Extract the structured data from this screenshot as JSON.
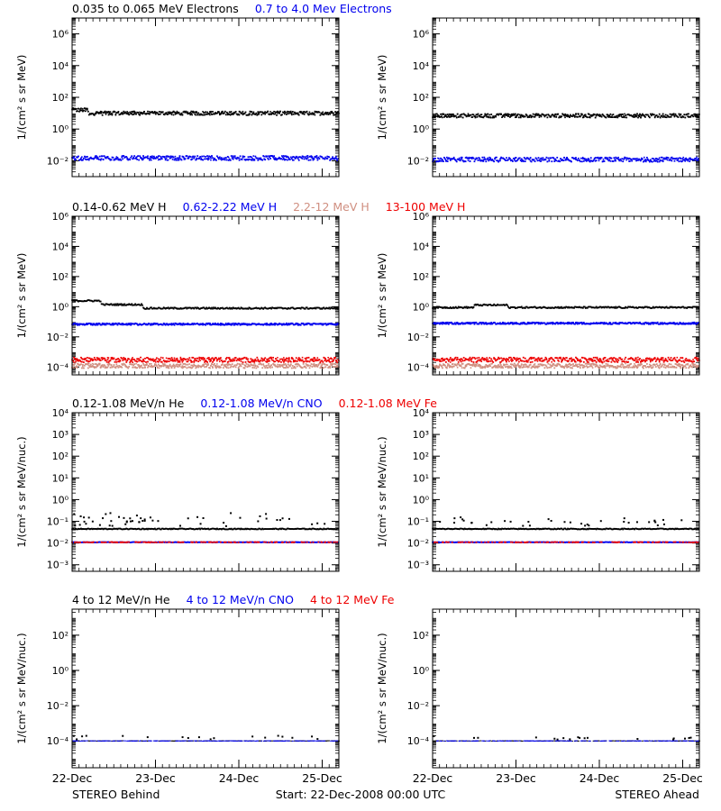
{
  "colors": {
    "black": "#000000",
    "blue": "#0000ee",
    "tan": "#d08f80",
    "red": "#ee0000"
  },
  "footer": {
    "left": "STEREO Behind",
    "center": "Start: 22-Dec-2008 00:00 UTC",
    "right": "STEREO Ahead"
  },
  "chart_data": [
    {
      "type": "scatter",
      "y_scale": "log",
      "ylabel": "1/(cm² s sr MeV)",
      "ylim": [
        0.001,
        10000000
      ],
      "y_ticks": [
        0.01,
        1,
        100,
        10000,
        1000000
      ],
      "y_tick_labels": [
        "10⁻²",
        "10⁰",
        "10²",
        "10⁴",
        "10⁶"
      ],
      "x_tick_labels": [
        "22-Dec",
        "23-Dec",
        "24-Dec",
        "25-Dec"
      ],
      "xlim_days": [
        0,
        3.2
      ],
      "legend": [
        {
          "label": "0.035 to 0.065 MeV Electrons",
          "color": "black"
        },
        {
          "label": "0.7 to 4.0 Mev Electrons",
          "color": "blue"
        }
      ],
      "panels": [
        {
          "name": "STEREO Behind",
          "series": [
            {
              "color": "black",
              "level": 10,
              "spread": 0.12,
              "early": [
                [
                  0,
                  0.2,
                  16
                ]
              ]
            },
            {
              "color": "blue",
              "level": 0.015,
              "spread": 0.14,
              "early": []
            }
          ]
        },
        {
          "name": "STEREO Ahead",
          "series": [
            {
              "color": "black",
              "level": 7,
              "spread": 0.12,
              "early": []
            },
            {
              "color": "blue",
              "level": 0.012,
              "spread": 0.14,
              "early": []
            }
          ]
        }
      ]
    },
    {
      "type": "scatter",
      "y_scale": "log",
      "ylabel": "1/(cm² s sr MeV)",
      "ylim": [
        3e-05,
        1000000
      ],
      "y_ticks": [
        0.0001,
        0.01,
        1,
        100,
        10000,
        1000000
      ],
      "y_tick_labels": [
        "10⁻⁴",
        "10⁻²",
        "10⁰",
        "10²",
        "10⁴",
        "10⁶"
      ],
      "x_tick_labels": [
        "22-Dec",
        "23-Dec",
        "24-Dec",
        "25-Dec"
      ],
      "xlim_days": [
        0,
        3.2
      ],
      "legend": [
        {
          "label": "0.14-0.62 MeV H",
          "color": "black"
        },
        {
          "label": "0.62-2.22 MeV H",
          "color": "blue"
        },
        {
          "label": "2.2-12 MeV H",
          "color": "tan"
        },
        {
          "label": "13-100 MeV H",
          "color": "red"
        }
      ],
      "panels": [
        {
          "name": "STEREO Behind",
          "series": [
            {
              "color": "black",
              "level": 0.8,
              "spread": 0.05,
              "early": [
                [
                  0,
                  0.35,
                  2.5
                ],
                [
                  0.35,
                  0.85,
                  1.4
                ]
              ]
            },
            {
              "color": "blue",
              "level": 0.07,
              "spread": 0.06,
              "early": []
            },
            {
              "color": "tan",
              "level": 0.00012,
              "spread": 0.15,
              "early": []
            },
            {
              "color": "red",
              "level": 0.0003,
              "spread": 0.16,
              "early": []
            }
          ]
        },
        {
          "name": "STEREO Ahead",
          "series": [
            {
              "color": "black",
              "level": 0.9,
              "spread": 0.05,
              "early": [
                [
                  0.5,
                  0.9,
                  1.3
                ]
              ]
            },
            {
              "color": "blue",
              "level": 0.08,
              "spread": 0.06,
              "early": []
            },
            {
              "color": "tan",
              "level": 0.00012,
              "spread": 0.15,
              "early": []
            },
            {
              "color": "red",
              "level": 0.0003,
              "spread": 0.16,
              "early": []
            }
          ]
        }
      ]
    },
    {
      "type": "scatter",
      "y_scale": "log",
      "ylabel": "1/(cm² s sr MeV/nuc.)",
      "ylim": [
        0.0005,
        10000
      ],
      "y_ticks": [
        0.001,
        0.01,
        0.1,
        1,
        10,
        100,
        1000,
        10000
      ],
      "y_tick_labels": [
        "10⁻³",
        "10⁻²",
        "10⁻¹",
        "10⁰",
        "10¹",
        "10²",
        "10³",
        "10⁴"
      ],
      "x_tick_labels": [
        "22-Dec",
        "23-Dec",
        "24-Dec",
        "25-Dec"
      ],
      "xlim_days": [
        0,
        3.2
      ],
      "legend": [
        {
          "label": "0.12-1.08 MeV/n He",
          "color": "black"
        },
        {
          "label": "0.12-1.08 MeV/n CNO",
          "color": "blue"
        },
        {
          "label": "0.12-1.08 MeV Fe",
          "color": "red"
        }
      ],
      "panels": [
        {
          "name": "STEREO Behind",
          "series": [
            {
              "color": "black",
              "level": 0.045,
              "spread": 0.02,
              "early": [],
              "sparse": [
                0.08,
                0.12,
                0.18
              ]
            },
            {
              "color": "blue",
              "level": 0.011,
              "spread": 0.01,
              "early": []
            },
            {
              "color": "red",
              "level": 0.011,
              "spread": 0.01,
              "early": [],
              "gaps": true
            }
          ]
        },
        {
          "name": "STEREO Ahead",
          "series": [
            {
              "color": "black",
              "level": 0.045,
              "spread": 0.02,
              "early": [],
              "sparse": [
                0.08,
                0.12
              ]
            },
            {
              "color": "blue",
              "level": 0.011,
              "spread": 0.01,
              "early": []
            },
            {
              "color": "red",
              "level": 0.011,
              "spread": 0.01,
              "early": [],
              "gaps": true
            }
          ]
        }
      ]
    },
    {
      "type": "scatter",
      "y_scale": "log",
      "ylabel": "1/(cm² s sr MeV/nuc.)",
      "ylim": [
        3e-06,
        3000
      ],
      "y_ticks": [
        0.0001,
        0.01,
        1,
        100
      ],
      "y_tick_labels": [
        "10⁻⁴",
        "10⁻²",
        "10⁰",
        "10²"
      ],
      "x_tick_labels": [
        "22-Dec",
        "23-Dec",
        "24-Dec",
        "25-Dec"
      ],
      "xlim_days": [
        0,
        3.2
      ],
      "legend": [
        {
          "label": "4 to 12 MeV/n He",
          "color": "black"
        },
        {
          "label": "4 to 12 MeV/n CNO",
          "color": "blue"
        },
        {
          "label": "4 to 12 MeV Fe",
          "color": "red"
        }
      ],
      "panels": [
        {
          "name": "STEREO Behind",
          "series": [
            {
              "color": "black",
              "level": 0.0001,
              "spread": 0.01,
              "early": [],
              "sparse": [
                0.00016
              ],
              "dashed": true
            },
            {
              "color": "blue",
              "level": 0.0001,
              "spread": 0.01,
              "early": [],
              "dashed": true
            }
          ]
        },
        {
          "name": "STEREO Ahead",
          "series": [
            {
              "color": "black",
              "level": 0.0001,
              "spread": 0.01,
              "early": [],
              "sparse": [
                0.00016
              ],
              "dashed": true
            },
            {
              "color": "blue",
              "level": 0.0001,
              "spread": 0.01,
              "early": [],
              "dashed": true
            }
          ]
        }
      ]
    }
  ]
}
